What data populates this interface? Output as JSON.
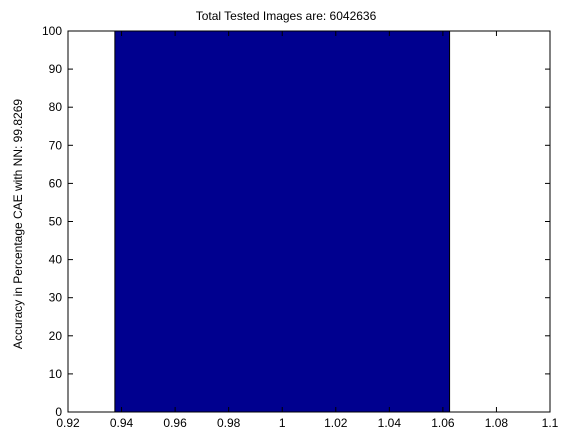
{
  "chart_data": {
    "type": "bar",
    "title": "Total Tested Images are: 6042636",
    "xlabel": "",
    "ylabel": "Accuracy in Percentage CAE with NN: 99.8269",
    "x": [
      1
    ],
    "values": [
      100
    ],
    "bar_width": 0.125,
    "xlim": [
      0.92,
      1.1
    ],
    "ylim": [
      0,
      100
    ],
    "xticks": [
      0.92,
      0.94,
      0.96,
      0.98,
      1,
      1.02,
      1.04,
      1.06,
      1.08,
      1.1
    ],
    "xtick_labels": [
      "0.92",
      "0.94",
      "0.96",
      "0.98",
      "1",
      "1.02",
      "1.04",
      "1.06",
      "1.08",
      "1.1"
    ],
    "yticks": [
      0,
      10,
      20,
      30,
      40,
      50,
      60,
      70,
      80,
      90,
      100
    ],
    "ytick_labels": [
      "0",
      "10",
      "20",
      "30",
      "40",
      "50",
      "60",
      "70",
      "80",
      "90",
      "100"
    ],
    "bar_color": "#00008f",
    "grid": false,
    "box": true
  }
}
